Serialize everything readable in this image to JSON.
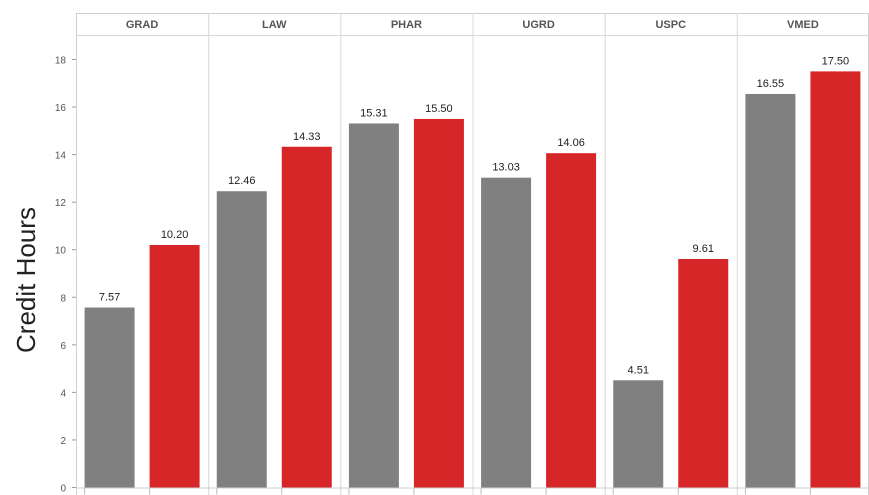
{
  "chart_data": {
    "type": "bar",
    "title": "",
    "xlabel": "",
    "ylabel": "Credit Hours",
    "ylim": [
      0,
      19
    ],
    "yticks": [
      0,
      2,
      4,
      6,
      8,
      10,
      12,
      14,
      16,
      18
    ],
    "grid": false,
    "legend": "none",
    "panels": [
      "GRAD",
      "LAW",
      "PHAR",
      "UGRD",
      "USPC",
      "VMED"
    ],
    "series": [
      {
        "color": "#808080",
        "values": [
          7.57,
          12.46,
          15.31,
          13.03,
          4.51,
          16.55
        ],
        "labels": [
          "7.57",
          "12.46",
          "15.31",
          "13.03",
          "4.51",
          "16.55"
        ]
      },
      {
        "color": "#d62628",
        "values": [
          10.2,
          14.33,
          15.5,
          14.06,
          9.61,
          17.5
        ],
        "labels": [
          "10.20",
          "14.33",
          "15.50",
          "14.06",
          "9.61",
          "17.50"
        ]
      }
    ]
  }
}
